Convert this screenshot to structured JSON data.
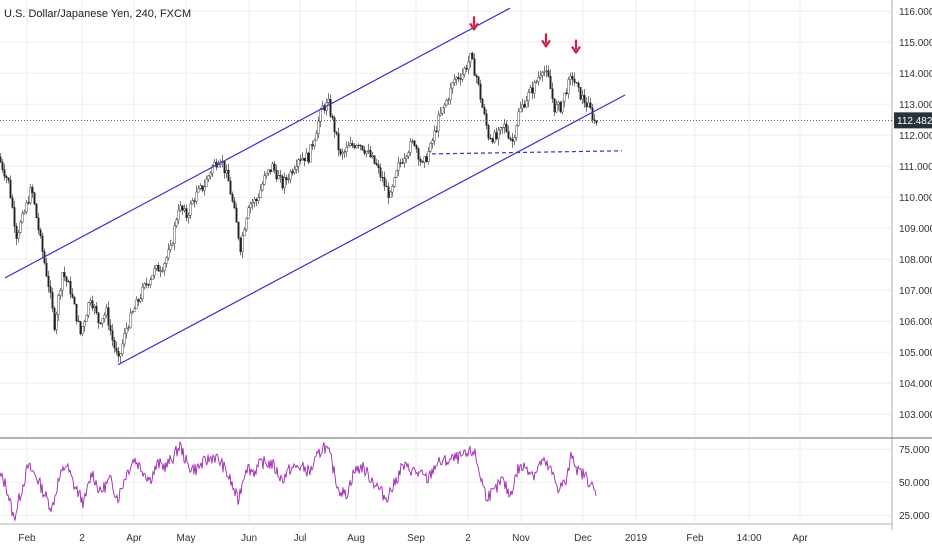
{
  "chart_data": [
    {
      "type": "candlestick",
      "title": "U.S. Dollar/Japanese Yen, 240, FXCM",
      "ylim": [
        102.3,
        116.3
      ],
      "y_ticks": [
        "103.000",
        "104.000",
        "105.000",
        "106.000",
        "107.000",
        "108.000",
        "109.000",
        "110.000",
        "111.000",
        "112.000",
        "113.000",
        "114.000",
        "115.000",
        "116.000"
      ],
      "y_tick_values": [
        103,
        104,
        105,
        106,
        107,
        108,
        109,
        110,
        111,
        112,
        113,
        114,
        115,
        116
      ],
      "x_ticks": [
        "Feb",
        "2",
        "Apr",
        "May",
        "Jun",
        "Jul",
        "Aug",
        "Sep",
        "2",
        "Nov",
        "Dec",
        "2019",
        "Feb",
        "14:00",
        "Apr"
      ],
      "last_price": "112.482",
      "last_price_value": 112.482,
      "price_path": [
        [
          0,
          111.3
        ],
        [
          10,
          110.5
        ],
        [
          18,
          108.8
        ],
        [
          25,
          109.4
        ],
        [
          33,
          110.3
        ],
        [
          42,
          108.6
        ],
        [
          50,
          107.2
        ],
        [
          56,
          105.9
        ],
        [
          64,
          107.6
        ],
        [
          72,
          107.0
        ],
        [
          82,
          105.6
        ],
        [
          92,
          106.8
        ],
        [
          100,
          106.0
        ],
        [
          108,
          106.3
        ],
        [
          114,
          105.4
        ],
        [
          120,
          104.7
        ],
        [
          128,
          105.8
        ],
        [
          136,
          106.4
        ],
        [
          146,
          107.1
        ],
        [
          155,
          107.6
        ],
        [
          164,
          107.8
        ],
        [
          172,
          108.3
        ],
        [
          180,
          109.7
        ],
        [
          188,
          109.4
        ],
        [
          196,
          110.0
        ],
        [
          206,
          110.4
        ],
        [
          214,
          111.0
        ],
        [
          222,
          111.3
        ],
        [
          230,
          110.5
        ],
        [
          236,
          109.5
        ],
        [
          242,
          108.4
        ],
        [
          250,
          109.8
        ],
        [
          258,
          109.9
        ],
        [
          266,
          110.6
        ],
        [
          274,
          111.0
        ],
        [
          284,
          110.4
        ],
        [
          292,
          110.8
        ],
        [
          300,
          111.3
        ],
        [
          310,
          111.3
        ],
        [
          318,
          112.2
        ],
        [
          324,
          112.9
        ],
        [
          330,
          113.0
        ],
        [
          336,
          112.2
        ],
        [
          342,
          111.3
        ],
        [
          350,
          111.6
        ],
        [
          360,
          111.8
        ],
        [
          370,
          111.4
        ],
        [
          378,
          111.0
        ],
        [
          386,
          110.4
        ],
        [
          392,
          110.0
        ],
        [
          400,
          111.0
        ],
        [
          408,
          111.5
        ],
        [
          416,
          111.8
        ],
        [
          424,
          111.0
        ],
        [
          432,
          111.6
        ],
        [
          440,
          112.5
        ],
        [
          448,
          113.1
        ],
        [
          456,
          113.8
        ],
        [
          464,
          114.0
        ],
        [
          472,
          114.5
        ],
        [
          478,
          113.9
        ],
        [
          484,
          112.9
        ],
        [
          490,
          112.0
        ],
        [
          498,
          111.9
        ],
        [
          506,
          112.3
        ],
        [
          514,
          111.8
        ],
        [
          520,
          112.7
        ],
        [
          528,
          113.2
        ],
        [
          536,
          113.6
        ],
        [
          544,
          114.2
        ],
        [
          550,
          113.8
        ],
        [
          556,
          112.9
        ],
        [
          562,
          112.9
        ],
        [
          568,
          113.5
        ],
        [
          574,
          113.9
        ],
        [
          580,
          113.4
        ],
        [
          586,
          113.1
        ],
        [
          592,
          112.8
        ],
        [
          596,
          112.45
        ]
      ],
      "channel_upper": [
        [
          5,
          107.4
        ],
        [
          510,
          116.1
        ]
      ],
      "channel_lower": [
        [
          118,
          104.6
        ],
        [
          625,
          113.3
        ]
      ],
      "support_line": [
        [
          432,
          111.4
        ],
        [
          622,
          111.5
        ]
      ],
      "peak_arrows": [
        {
          "x": 474,
          "value": 115.45
        },
        {
          "x": 546,
          "value": 114.9
        },
        {
          "x": 576,
          "value": 114.7
        }
      ],
      "candle_color_up": "#111111",
      "candle_color_down": "#111111",
      "channel_color": "#3333cc",
      "arrow_color": "#cc1f44",
      "last_price_bg": "#263238"
    },
    {
      "type": "line",
      "name": "RSI",
      "ylim": [
        20,
        82
      ],
      "y_ticks": [
        "25.000",
        "50.000",
        "75.000"
      ],
      "y_tick_values": [
        25,
        50,
        75
      ],
      "line_color": "#9c27b0",
      "values_path": [
        [
          0,
          55
        ],
        [
          6,
          48
        ],
        [
          14,
          22
        ],
        [
          20,
          40
        ],
        [
          28,
          62
        ],
        [
          36,
          55
        ],
        [
          44,
          42
        ],
        [
          52,
          30
        ],
        [
          58,
          50
        ],
        [
          66,
          64
        ],
        [
          74,
          48
        ],
        [
          84,
          34
        ],
        [
          92,
          58
        ],
        [
          100,
          42
        ],
        [
          110,
          52
        ],
        [
          118,
          38
        ],
        [
          126,
          56
        ],
        [
          134,
          68
        ],
        [
          142,
          60
        ],
        [
          150,
          52
        ],
        [
          158,
          64
        ],
        [
          166,
          62
        ],
        [
          174,
          70
        ],
        [
          180,
          78
        ],
        [
          188,
          62
        ],
        [
          196,
          60
        ],
        [
          206,
          66
        ],
        [
          214,
          70
        ],
        [
          222,
          64
        ],
        [
          230,
          52
        ],
        [
          238,
          36
        ],
        [
          246,
          62
        ],
        [
          254,
          58
        ],
        [
          262,
          65
        ],
        [
          272,
          64
        ],
        [
          282,
          52
        ],
        [
          290,
          60
        ],
        [
          300,
          62
        ],
        [
          310,
          58
        ],
        [
          318,
          70
        ],
        [
          324,
          78
        ],
        [
          330,
          70
        ],
        [
          338,
          46
        ],
        [
          346,
          40
        ],
        [
          354,
          58
        ],
        [
          362,
          62
        ],
        [
          370,
          54
        ],
        [
          378,
          46
        ],
        [
          386,
          38
        ],
        [
          394,
          48
        ],
        [
          402,
          62
        ],
        [
          410,
          60
        ],
        [
          420,
          56
        ],
        [
          428,
          52
        ],
        [
          436,
          64
        ],
        [
          446,
          66
        ],
        [
          456,
          68
        ],
        [
          466,
          70
        ],
        [
          474,
          74
        ],
        [
          480,
          56
        ],
        [
          486,
          40
        ],
        [
          494,
          42
        ],
        [
          502,
          52
        ],
        [
          510,
          40
        ],
        [
          518,
          60
        ],
        [
          526,
          62
        ],
        [
          534,
          56
        ],
        [
          542,
          66
        ],
        [
          550,
          60
        ],
        [
          558,
          46
        ],
        [
          566,
          50
        ],
        [
          572,
          72
        ],
        [
          578,
          58
        ],
        [
          584,
          56
        ],
        [
          590,
          50
        ],
        [
          596,
          40
        ]
      ]
    }
  ]
}
